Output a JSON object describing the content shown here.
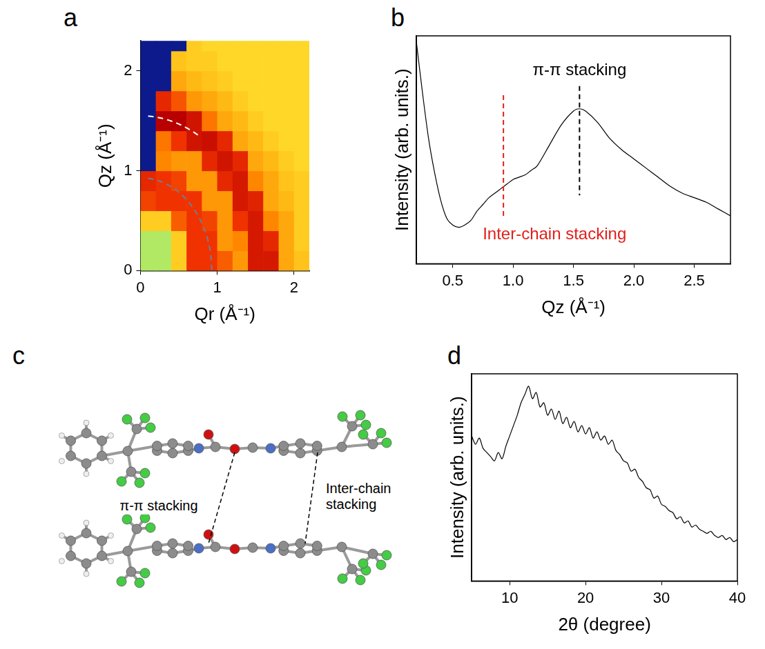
{
  "chart_data": [
    {
      "panel": "a",
      "type": "heatmap",
      "x_label": "Qr (Å⁻¹)",
      "y_label": "Qz (Å⁻¹)",
      "xlim": [
        0,
        2.2
      ],
      "ylim": [
        0,
        2.3
      ],
      "xticks": [
        0,
        1,
        2
      ],
      "yticks": [
        0,
        1,
        2
      ],
      "grid": false,
      "x": [
        0.1,
        0.3,
        0.5,
        0.7,
        0.9,
        1.1,
        1.3,
        1.5,
        1.7,
        1.9,
        2.1
      ],
      "y": [
        0.1,
        0.3,
        0.5,
        0.7,
        0.9,
        1.1,
        1.3,
        1.5,
        1.7,
        1.9,
        2.1,
        2.3
      ],
      "cells": [
        [
          0.45,
          0.45,
          0.6,
          0.8,
          0.8,
          0.75,
          0.68,
          0.85,
          0.85,
          0.66,
          0.62
        ],
        [
          0.45,
          0.45,
          0.6,
          0.8,
          0.8,
          0.68,
          0.7,
          0.85,
          0.82,
          0.66,
          0.6
        ],
        [
          0.6,
          0.6,
          0.75,
          0.8,
          0.78,
          0.68,
          0.8,
          0.85,
          0.7,
          0.66,
          0.6
        ],
        [
          0.78,
          0.8,
          0.8,
          0.8,
          0.68,
          0.68,
          0.85,
          0.83,
          0.66,
          0.64,
          0.6
        ],
        [
          0.82,
          0.8,
          0.78,
          0.68,
          0.68,
          0.82,
          0.85,
          0.7,
          0.66,
          0.62,
          0.6
        ],
        [
          null,
          0.7,
          0.68,
          0.68,
          0.82,
          0.86,
          0.82,
          0.66,
          0.64,
          0.6,
          0.58
        ],
        [
          null,
          0.72,
          0.8,
          0.86,
          0.87,
          0.82,
          0.66,
          0.64,
          0.6,
          0.58,
          0.58
        ],
        [
          null,
          0.9,
          0.9,
          0.86,
          0.72,
          0.66,
          0.64,
          0.6,
          0.58,
          0.58,
          0.58
        ],
        [
          null,
          0.82,
          0.76,
          0.68,
          0.66,
          0.64,
          0.6,
          0.58,
          0.58,
          0.58,
          0.58
        ],
        [
          null,
          null,
          0.66,
          0.64,
          0.62,
          0.6,
          0.58,
          0.58,
          0.58,
          0.58,
          0.58
        ],
        [
          null,
          null,
          0.62,
          0.6,
          0.6,
          0.58,
          0.58,
          0.58,
          0.58,
          0.58,
          0.58
        ],
        [
          null,
          null,
          null,
          0.6,
          0.58,
          0.58,
          0.58,
          0.58,
          0.58,
          0.58,
          0.58
        ]
      ],
      "arcs": [
        {
          "radius": 1.55,
          "qr_range": [
            0.1,
            0.78
          ],
          "color": "#ffffff"
        },
        {
          "radius": 0.93,
          "qr_range": [
            0.1,
            0.93
          ],
          "color": "#6e7f99"
        }
      ]
    },
    {
      "panel": "b",
      "type": "line",
      "x_label": "Qz (Å⁻¹)",
      "y_label": "Intensity (arb. units.)",
      "xlim": [
        0.2,
        2.8
      ],
      "ylim": [
        0,
        1
      ],
      "xticks": [
        0.5,
        {
          "value": 1,
          "label": "1.0"
        },
        1.5,
        {
          "value": 2,
          "label": "2.0"
        },
        2.5
      ],
      "tick_labels": "x",
      "grid": false,
      "color": "#000000",
      "x": [
        0.2,
        0.25,
        0.3,
        0.35,
        0.4,
        0.45,
        0.5,
        0.55,
        0.6,
        0.65,
        0.7,
        0.75,
        0.8,
        0.85,
        0.9,
        0.95,
        1.0,
        1.05,
        1.1,
        1.15,
        1.2,
        1.3,
        1.4,
        1.5,
        1.55,
        1.6,
        1.7,
        1.8,
        1.9,
        2.0,
        2.1,
        2.2,
        2.3,
        2.4,
        2.5,
        2.6,
        2.7,
        2.8
      ],
      "values": [
        0.97,
        0.75,
        0.55,
        0.4,
        0.28,
        0.2,
        0.17,
        0.16,
        0.17,
        0.19,
        0.23,
        0.26,
        0.29,
        0.31,
        0.33,
        0.35,
        0.37,
        0.38,
        0.39,
        0.41,
        0.43,
        0.52,
        0.61,
        0.67,
        0.68,
        0.67,
        0.62,
        0.55,
        0.5,
        0.46,
        0.42,
        0.38,
        0.34,
        0.31,
        0.29,
        0.27,
        0.24,
        0.21
      ],
      "annotations": [
        {
          "text": "π-π stacking",
          "x": 1.55,
          "y_range": [
            0.3,
            0.78
          ],
          "color": "#000000"
        },
        {
          "text": "Inter-chain stacking",
          "x": 0.92,
          "y_range": [
            0.2,
            0.74
          ],
          "color": "#e0201b"
        }
      ]
    },
    {
      "panel": "d",
      "type": "line",
      "x_label": "2θ (degree)",
      "y_label": "Intensity (arb. units.)",
      "xlim": [
        5,
        40
      ],
      "ylim": [
        0,
        1
      ],
      "xticks": [
        10,
        20,
        30,
        40
      ],
      "tick_labels": "x",
      "grid": false,
      "color": "#000000",
      "x": [
        5,
        5.5,
        6,
        6.5,
        7,
        7.5,
        8,
        8.5,
        9,
        9.5,
        10,
        10.5,
        11,
        11.5,
        12,
        12.5,
        13,
        13.5,
        14,
        14.5,
        15,
        15.5,
        16,
        16.5,
        17,
        17.5,
        18,
        18.5,
        19,
        19.5,
        20,
        20.5,
        21,
        21.5,
        22,
        22.5,
        23,
        23.5,
        24,
        24.5,
        25,
        25.5,
        26,
        26.5,
        27,
        27.5,
        28,
        28.5,
        29,
        29.5,
        30,
        30.5,
        31,
        31.5,
        32,
        32.5,
        33,
        33.5,
        34,
        34.5,
        35,
        35.5,
        36,
        36.5,
        37,
        37.5,
        38,
        38.5,
        39,
        39.5,
        40
      ],
      "values": [
        0.7,
        0.66,
        0.69,
        0.64,
        0.62,
        0.6,
        0.58,
        0.62,
        0.59,
        0.65,
        0.7,
        0.75,
        0.8,
        0.86,
        0.9,
        0.94,
        0.88,
        0.91,
        0.84,
        0.86,
        0.8,
        0.83,
        0.78,
        0.82,
        0.76,
        0.79,
        0.74,
        0.77,
        0.72,
        0.75,
        0.71,
        0.74,
        0.69,
        0.72,
        0.68,
        0.7,
        0.66,
        0.68,
        0.63,
        0.61,
        0.58,
        0.57,
        0.53,
        0.54,
        0.5,
        0.48,
        0.45,
        0.44,
        0.4,
        0.41,
        0.37,
        0.36,
        0.34,
        0.33,
        0.3,
        0.31,
        0.28,
        0.29,
        0.26,
        0.27,
        0.25,
        0.24,
        0.23,
        0.24,
        0.22,
        0.21,
        0.22,
        0.2,
        0.21,
        0.19,
        0.2
      ]
    }
  ],
  "diagram": {
    "panel": "c",
    "labels": [
      "π-π stacking",
      "Inter-chain stacking"
    ]
  }
}
